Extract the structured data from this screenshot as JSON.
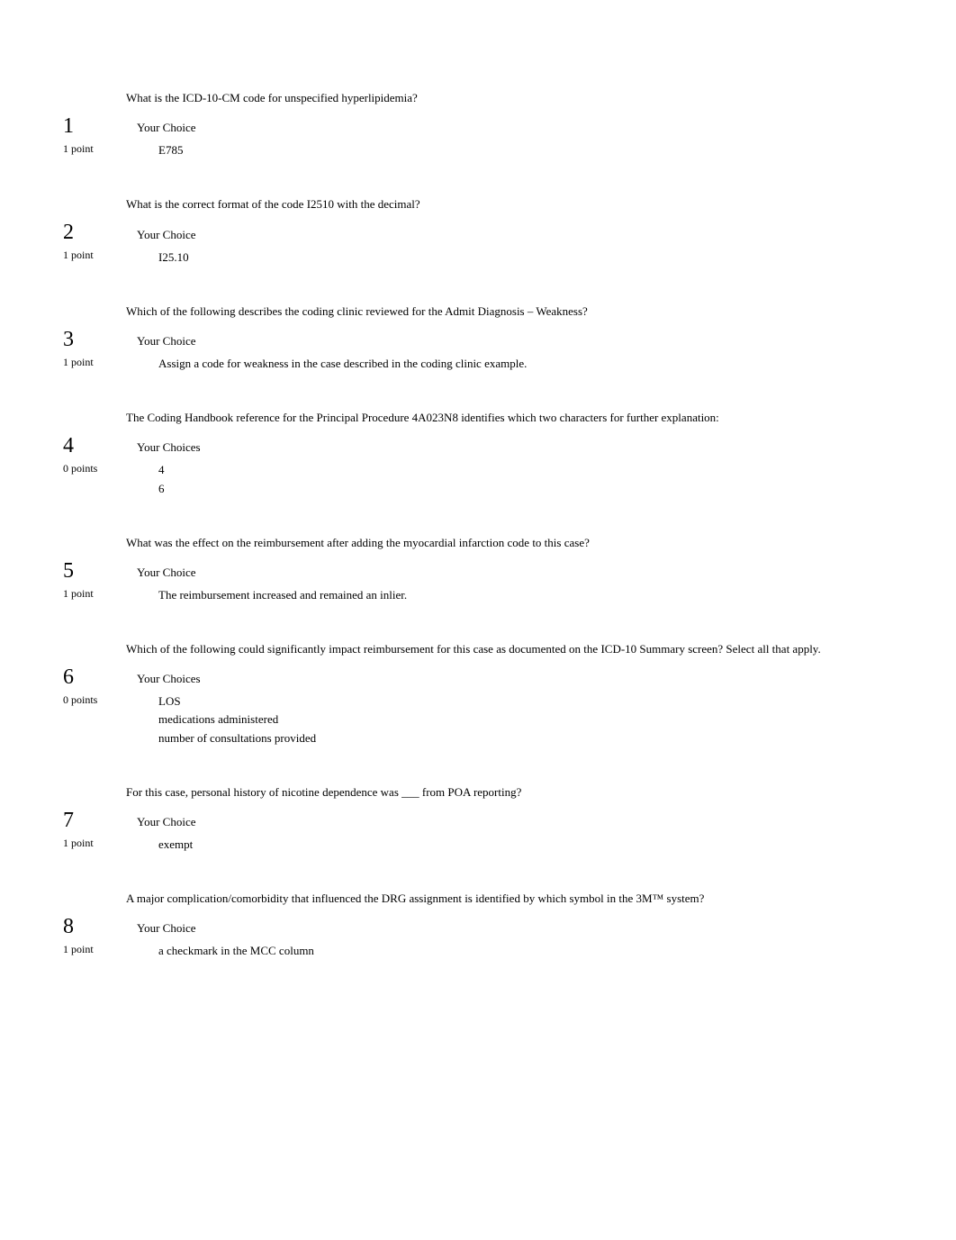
{
  "questions": [
    {
      "number": "1",
      "points": "1 point",
      "text": "What is the ICD-10-CM code for unspecified hyperlipidemia?",
      "choice_header": "Your Choice",
      "choices": [
        "E785"
      ]
    },
    {
      "number": "2",
      "points": "1 point",
      "text": "What is the correct format of the code I2510 with the decimal?",
      "choice_header": "Your Choice",
      "choices": [
        "I25.10"
      ]
    },
    {
      "number": "3",
      "points": "1 point",
      "text": "Which of the following describes the coding clinic reviewed for the Admit Diagnosis – Weakness?",
      "choice_header": "Your Choice",
      "choices": [
        "Assign a code for weakness in the case described in the coding clinic example."
      ]
    },
    {
      "number": "4",
      "points": "0 points",
      "text": "The Coding Handbook reference for the Principal Procedure 4A023N8 identifies which two characters for further explanation:",
      "choice_header": "Your Choices",
      "choices": [
        "4",
        "6"
      ]
    },
    {
      "number": "5",
      "points": "1 point",
      "text": "What was the effect on the reimbursement after adding the myocardial infarction code to this case?",
      "choice_header": "Your Choice",
      "choices": [
        "The reimbursement increased and remained an inlier."
      ]
    },
    {
      "number": "6",
      "points": "0 points",
      "text": "Which of the following could significantly impact reimbursement for this case as documented on the ICD-10 Summary screen? Select all that apply.",
      "choice_header": "Your Choices",
      "choices": [
        "LOS",
        "medications administered",
        "number of consultations provided"
      ]
    },
    {
      "number": "7",
      "points": "1 point",
      "text": "For this case, personal history of nicotine dependence was ___ from POA reporting?",
      "choice_header": "Your Choice",
      "choices": [
        "exempt"
      ]
    },
    {
      "number": "8",
      "points": "1 point",
      "text": "A major complication/comorbidity that influenced the DRG assignment is identified by which symbol in the 3M™ system?",
      "choice_header": "Your Choice",
      "choices": [
        "a checkmark in the MCC column"
      ]
    }
  ],
  "bullet_glyph": "",
  "colors": {
    "background": "#ffffff",
    "text": "#000000"
  },
  "typography": {
    "body_font": "Georgia, Times New Roman, serif",
    "question_number_size": 24,
    "body_text_size": 13,
    "points_size": 12,
    "marker_size": 11
  }
}
